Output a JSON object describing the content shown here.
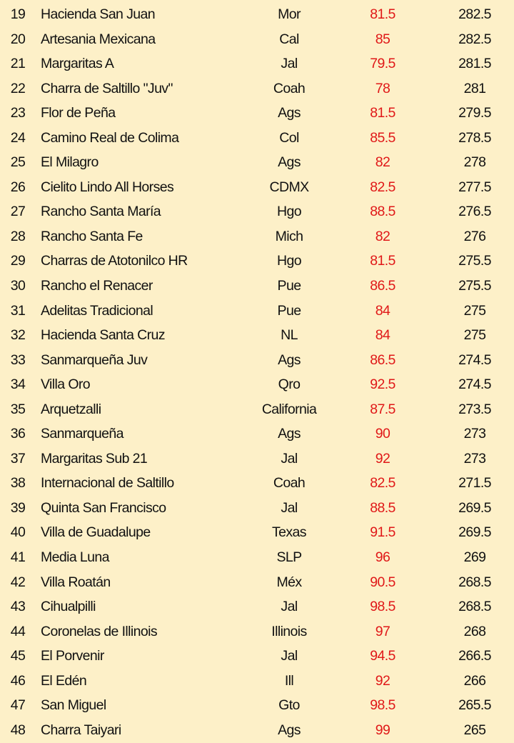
{
  "colors": {
    "background": "#fdf0c8",
    "score_text": "#e01818",
    "text": "#111111"
  },
  "rows": [
    {
      "rank": "19",
      "name": "Hacienda San Juan",
      "state": "Mor",
      "score": "81.5",
      "total": "282.5"
    },
    {
      "rank": "20",
      "name": "Artesania Mexicana",
      "state": "Cal",
      "score": "85",
      "total": "282.5"
    },
    {
      "rank": "21",
      "name": "Margaritas A",
      "state": "Jal",
      "score": "79.5",
      "total": "281.5"
    },
    {
      "rank": "22",
      "name": "Charra de Saltillo \"Juv\"",
      "state": "Coah",
      "score": "78",
      "total": "281"
    },
    {
      "rank": "23",
      "name": "Flor de Peña",
      "state": "Ags",
      "score": "81.5",
      "total": "279.5"
    },
    {
      "rank": "24",
      "name": "Camino Real de Colima",
      "state": "Col",
      "score": "85.5",
      "total": "278.5"
    },
    {
      "rank": "25",
      "name": "El Milagro",
      "state": "Ags",
      "score": "82",
      "total": "278"
    },
    {
      "rank": "26",
      "name": "Cielito Lindo All Horses",
      "state": "CDMX",
      "score": "82.5",
      "total": "277.5"
    },
    {
      "rank": "27",
      "name": "Rancho Santa María",
      "state": "Hgo",
      "score": "88.5",
      "total": "276.5"
    },
    {
      "rank": "28",
      "name": "Rancho Santa Fe",
      "state": "Mich",
      "score": "82",
      "total": "276"
    },
    {
      "rank": "29",
      "name": "Charras de Atotonilco HR",
      "state": "Hgo",
      "score": "81.5",
      "total": "275.5"
    },
    {
      "rank": "30",
      "name": "Rancho el Renacer",
      "state": "Pue",
      "score": "86.5",
      "total": "275.5"
    },
    {
      "rank": "31",
      "name": "Adelitas Tradicional",
      "state": "Pue",
      "score": "84",
      "total": "275"
    },
    {
      "rank": "32",
      "name": "Hacienda  Santa Cruz",
      "state": "NL",
      "score": "84",
      "total": "275"
    },
    {
      "rank": "33",
      "name": "Sanmarqueña Juv",
      "state": "Ags",
      "score": "86.5",
      "total": "274.5"
    },
    {
      "rank": "34",
      "name": "Villa Oro",
      "state": "Qro",
      "score": "92.5",
      "total": "274.5"
    },
    {
      "rank": "35",
      "name": "Arquetzalli",
      "state": "California",
      "score": "87.5",
      "total": "273.5"
    },
    {
      "rank": "36",
      "name": "Sanmarqueña",
      "state": "Ags",
      "score": "90",
      "total": "273"
    },
    {
      "rank": "37",
      "name": "Margaritas Sub 21",
      "state": "Jal",
      "score": "92",
      "total": "273"
    },
    {
      "rank": "38",
      "name": "Internacional de Saltillo",
      "state": "Coah",
      "score": "82.5",
      "total": "271.5"
    },
    {
      "rank": "39",
      "name": "Quinta San Francisco",
      "state": "Jal",
      "score": "88.5",
      "total": "269.5"
    },
    {
      "rank": "40",
      "name": "Villa de Guadalupe",
      "state": "Texas",
      "score": "91.5",
      "total": "269.5"
    },
    {
      "rank": "41",
      "name": "Media Luna",
      "state": "SLP",
      "score": "96",
      "total": "269"
    },
    {
      "rank": "42",
      "name": "Villa Roatán",
      "state": "Méx",
      "score": "90.5",
      "total": "268.5"
    },
    {
      "rank": "43",
      "name": "Cihualpilli",
      "state": "Jal",
      "score": "98.5",
      "total": "268.5"
    },
    {
      "rank": "44",
      "name": "Coronelas de Illinois",
      "state": "Illinois",
      "score": "97",
      "total": "268"
    },
    {
      "rank": "45",
      "name": "El Porvenir",
      "state": "Jal",
      "score": "94.5",
      "total": "266.5"
    },
    {
      "rank": "46",
      "name": "El Edén",
      "state": "Ill",
      "score": "92",
      "total": "266"
    },
    {
      "rank": "47",
      "name": "San Miguel",
      "state": "Gto",
      "score": "98.5",
      "total": "265.5"
    },
    {
      "rank": "48",
      "name": "Charra Taiyari",
      "state": "Ags",
      "score": "99",
      "total": "265"
    }
  ]
}
